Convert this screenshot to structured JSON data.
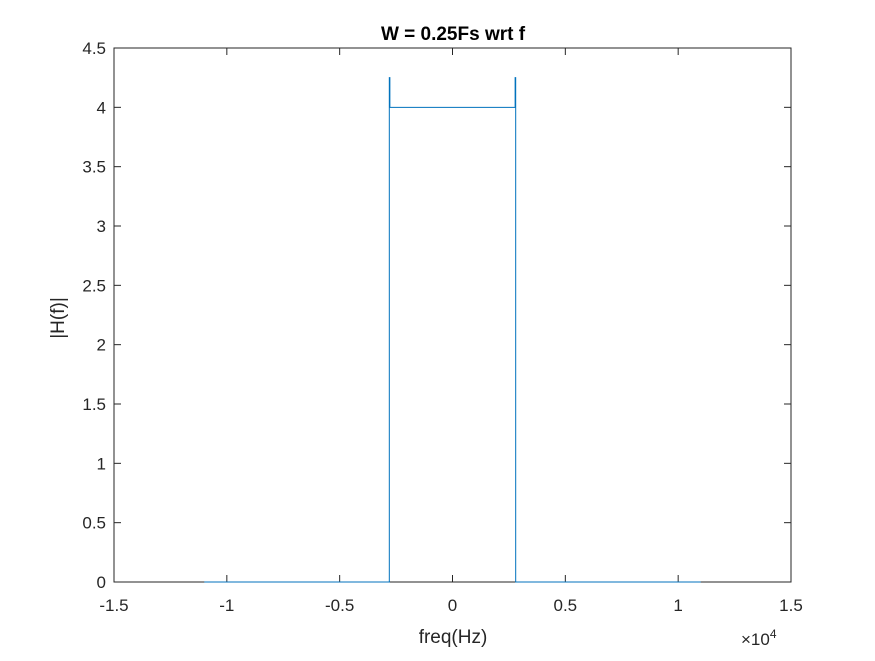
{
  "chart_data": {
    "type": "line",
    "title": "W = 0.25Fs wrt f",
    "xlabel": "freq(Hz)",
    "ylabel": "|H(f)|",
    "x_exponent_label": "×10",
    "x_exponent_power": "4",
    "xlim": [
      -1.5,
      1.5
    ],
    "ylim": [
      0,
      4.5
    ],
    "x_scale_multiplier": 10000,
    "xticks": [
      -1.5,
      -1,
      -0.5,
      0,
      0.5,
      1,
      1.5
    ],
    "xtick_labels": [
      "-1.5",
      "-1",
      "-0.5",
      "0",
      "0.5",
      "1",
      "1.5"
    ],
    "yticks": [
      0,
      0.5,
      1,
      1.5,
      2,
      2.5,
      3,
      3.5,
      4,
      4.5
    ],
    "ytick_labels": [
      "0",
      "0.5",
      "1",
      "1.5",
      "2",
      "2.5",
      "3",
      "3.5",
      "4",
      "4.5"
    ],
    "grid": false,
    "legend": "none",
    "series": [
      {
        "color": "#0072bd",
        "x": [
          -1.1,
          -0.28,
          -0.28,
          -0.2775,
          -0.2775,
          0.2775,
          0.2775,
          0.28,
          0.28,
          1.1
        ],
        "y": [
          0,
          0,
          4.25,
          4.25,
          4.0,
          4.0,
          4.25,
          4.25,
          0,
          0
        ]
      }
    ]
  }
}
